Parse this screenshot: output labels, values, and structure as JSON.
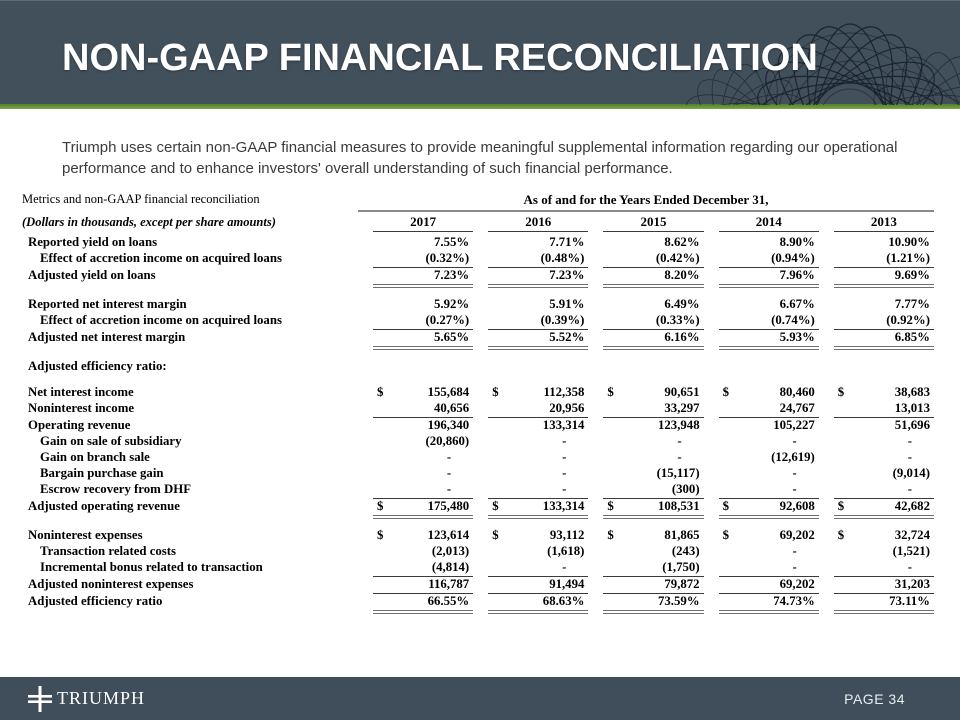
{
  "header": {
    "title": "NON-GAAP FINANCIAL RECONCILIATION"
  },
  "intro": "Triumph uses certain non-GAAP financial measures to provide meaningful supplemental information regarding our operational performance and to enhance investors' overall understanding of such financial performance.",
  "colors": {
    "header_bg": "#42505C",
    "green_accent": "#6D9C3D",
    "footer_bg": "#3F4E5A",
    "pattern_stroke": "#111B26"
  },
  "icons": {
    "logo": "triumph-cross-icon",
    "decoration": "guilloche-pattern"
  },
  "table": {
    "caption": "Metrics and non-GAAP financial reconciliation",
    "units_note": "(Dollars in thousands, except per share amounts)",
    "spanner": "As of and for the Years Ended December 31,",
    "years": [
      "2017",
      "2016",
      "2015",
      "2014",
      "2013"
    ],
    "rows": [
      {
        "label": "Reported yield on loans",
        "values": [
          "7.55%",
          "7.71%",
          "8.62%",
          "8.90%",
          "10.90%"
        ]
      },
      {
        "label": "Effect of accretion income on acquired loans",
        "indent": true,
        "underline": "single",
        "values": [
          "(0.32%)",
          "(0.48%)",
          "(0.42%)",
          "(0.94%)",
          "(1.21%)"
        ]
      },
      {
        "label": "Adjusted yield on loans",
        "underline": "double",
        "values": [
          "7.23%",
          "7.23%",
          "8.20%",
          "7.96%",
          "9.69%"
        ]
      },
      {
        "type": "spacer"
      },
      {
        "label": "Reported net interest margin",
        "values": [
          "5.92%",
          "5.91%",
          "6.49%",
          "6.67%",
          "7.77%"
        ]
      },
      {
        "label": "Effect of accretion income on acquired loans",
        "indent": true,
        "underline": "single",
        "values": [
          "(0.27%)",
          "(0.39%)",
          "(0.33%)",
          "(0.74%)",
          "(0.92%)"
        ]
      },
      {
        "label": "Adjusted net interest margin",
        "underline": "double",
        "values": [
          "5.65%",
          "5.52%",
          "6.16%",
          "5.93%",
          "6.85%"
        ]
      },
      {
        "type": "spacer"
      },
      {
        "label": "Adjusted efficiency ratio:",
        "values": []
      },
      {
        "label": "Net interest income",
        "dollar": true,
        "values": [
          "155,684",
          "112,358",
          "90,651",
          "80,460",
          "38,683"
        ]
      },
      {
        "label": "Noninterest income",
        "underline": "single",
        "values": [
          "40,656",
          "20,956",
          "33,297",
          "24,767",
          "13,013"
        ]
      },
      {
        "label": "Operating revenue",
        "values": [
          "196,340",
          "133,314",
          "123,948",
          "105,227",
          "51,696"
        ]
      },
      {
        "label": "Gain on sale of subsidiary",
        "indent": true,
        "values": [
          "(20,860)",
          "-",
          "-",
          "-",
          "-"
        ]
      },
      {
        "label": "Gain on branch sale",
        "indent": true,
        "values": [
          "-",
          "-",
          "-",
          "(12,619)",
          "-"
        ]
      },
      {
        "label": "Bargain purchase gain",
        "indent": true,
        "values": [
          "-",
          "-",
          "(15,117)",
          "-",
          "(9,014)"
        ]
      },
      {
        "label": "Escrow recovery from DHF",
        "indent": true,
        "underline": "single",
        "values": [
          "-",
          "-",
          "(300)",
          "-",
          "-"
        ]
      },
      {
        "label": "Adjusted operating revenue",
        "dollar": true,
        "underline": "double",
        "values": [
          "175,480",
          "133,314",
          "108,531",
          "92,608",
          "42,682"
        ]
      },
      {
        "type": "spacer"
      },
      {
        "label": "Noninterest expenses",
        "dollar": true,
        "values": [
          "123,614",
          "93,112",
          "81,865",
          "69,202",
          "32,724"
        ]
      },
      {
        "label": "Transaction related costs",
        "indent": true,
        "values": [
          "(2,013)",
          "(1,618)",
          "(243)",
          "-",
          "(1,521)"
        ]
      },
      {
        "label": "Incremental bonus related to transaction",
        "indent": true,
        "underline": "single",
        "values": [
          "(4,814)",
          "-",
          "(1,750)",
          "-",
          "-"
        ]
      },
      {
        "label": "Adjusted noninterest expenses",
        "underline": "single",
        "values": [
          "116,787",
          "91,494",
          "79,872",
          "69,202",
          "31,203"
        ]
      },
      {
        "label": "Adjusted efficiency ratio",
        "underline": "double",
        "values": [
          "66.55%",
          "68.63%",
          "73.59%",
          "74.73%",
          "73.11%"
        ]
      }
    ]
  },
  "footer": {
    "brand": "TRIUMPH",
    "page": "PAGE 34"
  }
}
